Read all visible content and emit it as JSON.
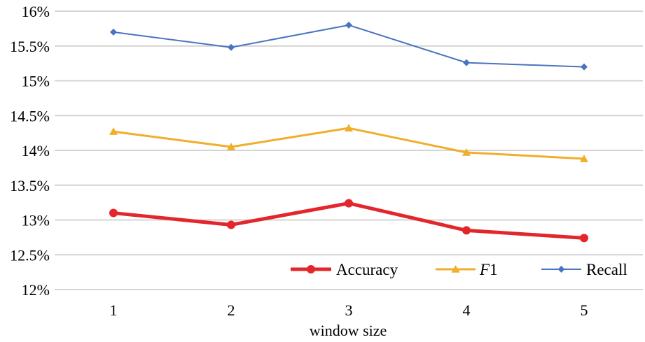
{
  "chart_data": {
    "type": "line",
    "title": "",
    "xlabel": "window size",
    "ylabel": "",
    "categories": [
      "1",
      "2",
      "3",
      "4",
      "5"
    ],
    "ylim": [
      12,
      16
    ],
    "yticks": [
      "12%",
      "12.5%",
      "13%",
      "13.5%",
      "14%",
      "14.5%",
      "15%",
      "15.5%",
      "16%"
    ],
    "grid": true,
    "legend_position": "bottom-right",
    "series": [
      {
        "name": "Accuracy",
        "name_main": "Accuracy",
        "name_suffix": "",
        "values": [
          13.1,
          12.93,
          13.24,
          12.85,
          12.74
        ],
        "color": "#e3262b",
        "marker": "circle"
      },
      {
        "name": "F1",
        "name_main": "F",
        "name_suffix": "1",
        "values": [
          14.27,
          14.05,
          14.32,
          13.97,
          13.88
        ],
        "color": "#f0ae2a",
        "marker": "triangle"
      },
      {
        "name": "Recall",
        "name_main": "Recall",
        "name_suffix": "",
        "values": [
          15.7,
          15.48,
          15.8,
          15.26,
          15.2
        ],
        "color": "#4a74c0",
        "marker": "diamond"
      }
    ]
  }
}
